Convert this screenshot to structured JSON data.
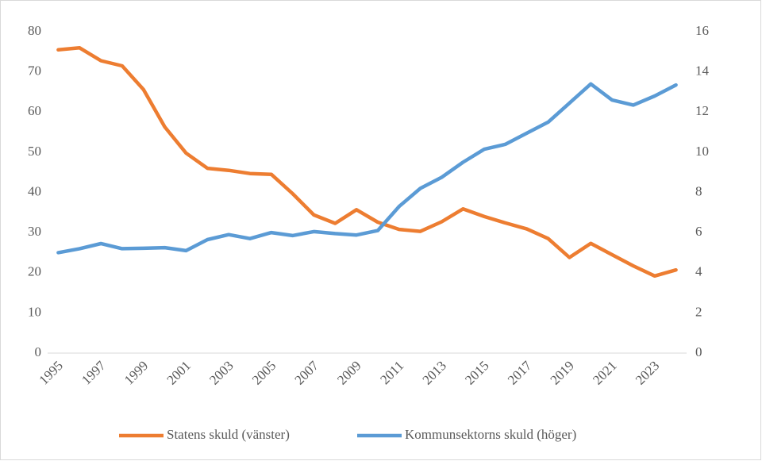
{
  "chart_data": {
    "type": "line",
    "categories": [
      "1995",
      null,
      "1997",
      null,
      "1999",
      null,
      "2001",
      null,
      "2003",
      null,
      "2005",
      null,
      "2007",
      null,
      "2009",
      null,
      "2011",
      null,
      "2013",
      null,
      "2015",
      null,
      "2017",
      null,
      "2019",
      null,
      "2021",
      null,
      "2023",
      null
    ],
    "series": [
      {
        "name": "Statens skuld (vänster)",
        "color": "#ed7d31",
        "axis": "y",
        "values": [
          75.5,
          76,
          72.8,
          71.5,
          65.6,
          56.3,
          49.8,
          46,
          45.5,
          44.7,
          44.5,
          39.7,
          34.4,
          32.3,
          35.7,
          32.6,
          30.8,
          30.3,
          32.7,
          35.9,
          34,
          32.4,
          30.9,
          28.5,
          23.8,
          27.3,
          24.5,
          21.7,
          19.2,
          20.7
        ]
      },
      {
        "name": "Kommunsektorns skuld (höger)",
        "color": "#5b9bd5",
        "axis": "y2",
        "values": [
          5.0,
          5.2,
          5.45,
          5.2,
          5.22,
          5.25,
          5.1,
          5.65,
          5.9,
          5.7,
          6.0,
          5.85,
          6.05,
          5.95,
          5.88,
          6.1,
          7.3,
          8.2,
          8.75,
          9.5,
          10.15,
          10.4,
          10.95,
          11.5,
          12.45,
          13.4,
          12.6,
          12.35,
          12.8,
          13.35
        ]
      }
    ],
    "ylim": [
      0,
      80
    ],
    "yticks": [
      0,
      10,
      20,
      30,
      40,
      50,
      60,
      70,
      80
    ],
    "y2lim": [
      0,
      16
    ],
    "y2ticks": [
      0,
      2,
      4,
      6,
      8,
      10,
      12,
      14,
      16
    ],
    "legend": "bottom",
    "grid": false
  }
}
